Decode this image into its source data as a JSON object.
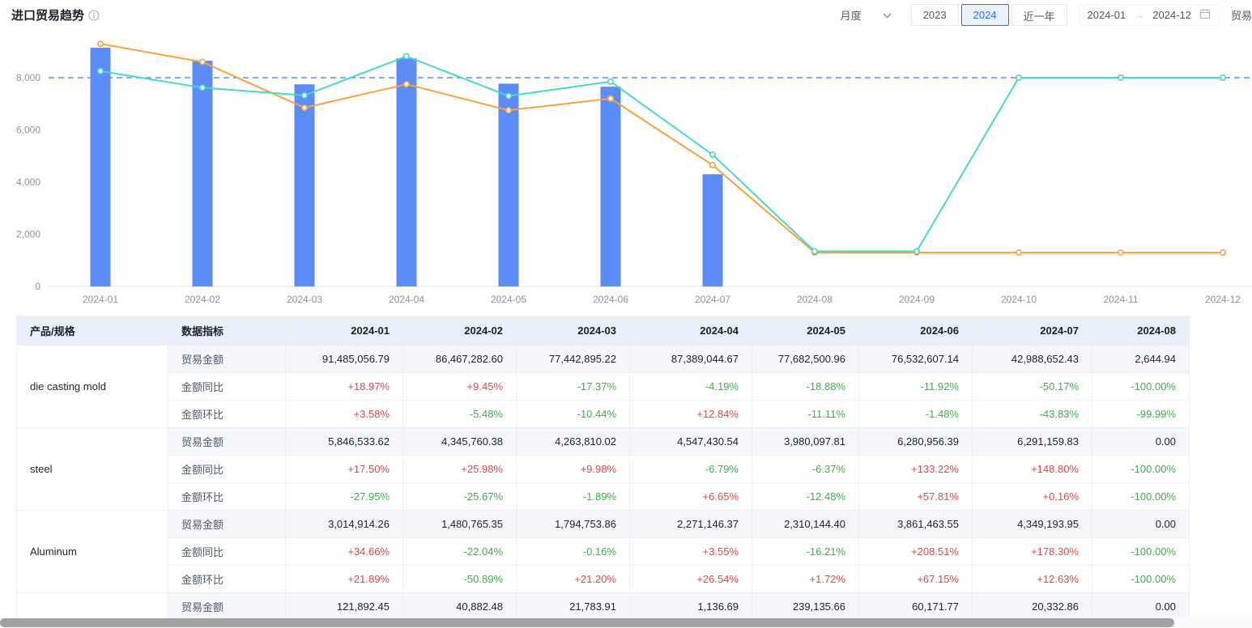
{
  "header": {
    "title": "进口贸易趋势"
  },
  "controls": {
    "frequency": "月度",
    "buttons": {
      "year_2023": "2023",
      "year_2024": "2024",
      "recent_year": "近一年"
    },
    "date_range": {
      "start": "2024-01",
      "arrow": "→",
      "end": "2024-12"
    },
    "partial_label": "贸易"
  },
  "chart_data": {
    "type": "bar+line combo",
    "categories": [
      "2024-01",
      "2024-02",
      "2024-03",
      "2024-04",
      "2024-05",
      "2024-06",
      "2024-07",
      "2024-08",
      "2024-09",
      "2024-10",
      "2024-11",
      "2024-12"
    ],
    "yticks": [
      0,
      2000,
      4000,
      6000,
      8000
    ],
    "ylim": [
      0,
      9600
    ],
    "grid": false,
    "legend": "none",
    "reference_line": {
      "value": 8000,
      "style": "dashed",
      "color": "#5b8cf7"
    },
    "series": [
      {
        "name": "bar-series",
        "type": "bar",
        "color": "#5b8cf7",
        "values": [
          9150,
          8650,
          7745,
          8740,
          7770,
          7655,
          4300,
          null,
          null,
          null,
          null,
          null
        ]
      },
      {
        "name": "orange-line-series",
        "type": "line",
        "color": "#f9a23c",
        "values": [
          9300,
          8600,
          6850,
          7750,
          6750,
          7200,
          4650,
          1300,
          1300,
          1300,
          1300,
          1300
        ]
      },
      {
        "name": "teal-line-series",
        "type": "line",
        "color": "#45d9c6",
        "values": [
          8250,
          7620,
          7320,
          8820,
          7300,
          7850,
          5050,
          1350,
          1350,
          8000,
          8000,
          8000
        ]
      }
    ]
  },
  "table": {
    "columns": [
      "产品/规格",
      "数据指标",
      "2024-01",
      "2024-02",
      "2024-03",
      "2024-04",
      "2024-05",
      "2024-06",
      "2024-07",
      "2024-08"
    ],
    "groups": [
      {
        "product": "die casting mold",
        "rows": [
          {
            "indicator": "贸易金额",
            "values": [
              "91,485,056.79",
              "86,467,282.60",
              "77,442,895.22",
              "87,389,044.67",
              "77,682,500.96",
              "76,532,607.14",
              "42,988,652.43",
              "2,644.94"
            ]
          },
          {
            "indicator": "金额同比",
            "values": [
              "+18.97%",
              "+9.45%",
              "-17.37%",
              "-4.19%",
              "-18.88%",
              "-11.92%",
              "-50.17%",
              "-100.00%"
            ]
          },
          {
            "indicator": "金额环比",
            "values": [
              "+3.58%",
              "-5.48%",
              "-10.44%",
              "+12.84%",
              "-11.11%",
              "-1.48%",
              "-43.83%",
              "-99.99%"
            ]
          }
        ]
      },
      {
        "product": "steel",
        "rows": [
          {
            "indicator": "贸易金额",
            "values": [
              "5,846,533.62",
              "4,345,760.38",
              "4,263,810.02",
              "4,547,430.54",
              "3,980,097.81",
              "6,280,956.39",
              "6,291,159.83",
              "0.00"
            ]
          },
          {
            "indicator": "金额同比",
            "values": [
              "+17.50%",
              "+25.98%",
              "+9.98%",
              "-6.79%",
              "-6.37%",
              "+133.22%",
              "+148.80%",
              "-100.00%"
            ]
          },
          {
            "indicator": "金额环比",
            "values": [
              "-27.95%",
              "-25.67%",
              "-1.89%",
              "+6.65%",
              "-12.48%",
              "+57.81%",
              "+0.16%",
              "-100.00%"
            ]
          }
        ]
      },
      {
        "product": "Aluminum",
        "rows": [
          {
            "indicator": "贸易金额",
            "values": [
              "3,014,914.26",
              "1,480,765.35",
              "1,794,753.86",
              "2,271,146.37",
              "2,310,144.40",
              "3,861,463.55",
              "4,349,193.95",
              "0.00"
            ]
          },
          {
            "indicator": "金额同比",
            "values": [
              "+34.66%",
              "-22.04%",
              "-0.16%",
              "+3.55%",
              "-16.21%",
              "+208.51%",
              "+178.30%",
              "-100.00%"
            ]
          },
          {
            "indicator": "金额环比",
            "values": [
              "+21.89%",
              "-50.89%",
              "+21.20%",
              "+26.54%",
              "+1.72%",
              "+67.15%",
              "+12.63%",
              "-100.00%"
            ]
          }
        ]
      },
      {
        "product": "",
        "rows": [
          {
            "indicator": "贸易金额",
            "values": [
              "121,892.45",
              "40,882.48",
              "21,783.91",
              "1,136.69",
              "239,135.66",
              "60,171.77",
              "20,332.86",
              "0.00"
            ]
          }
        ]
      }
    ]
  },
  "colors": {
    "bar": "#5b8cf7",
    "orange_line": "#f9a23c",
    "teal_line": "#45d9c6",
    "reference_dashed": "#5b8cf7",
    "positive_value": "#e64545",
    "negative_value": "#3bb146",
    "table_header_bg": "#e8eff9",
    "active_button": "#2f6bff"
  }
}
